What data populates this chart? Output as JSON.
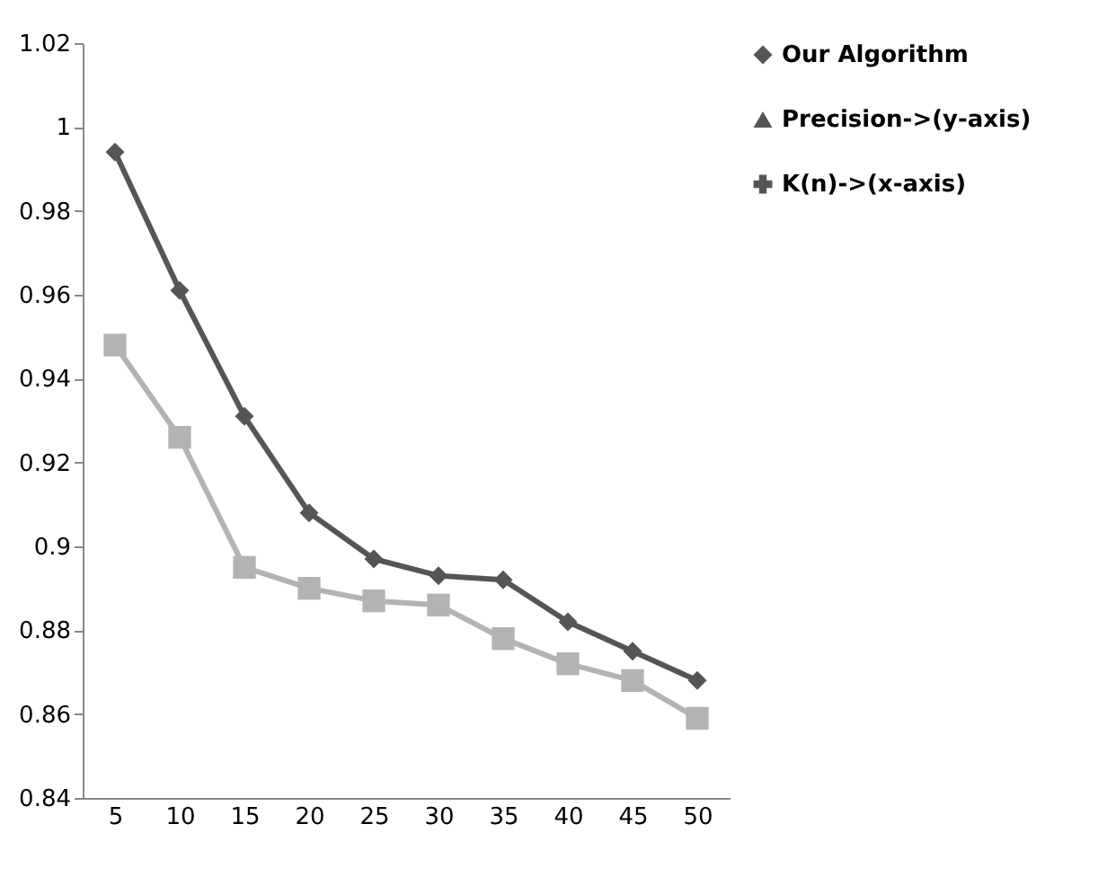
{
  "chart_data": {
    "type": "line",
    "categories": [
      "5",
      "10",
      "15",
      "20",
      "25",
      "30",
      "35",
      "40",
      "45",
      "50"
    ],
    "series": [
      {
        "name": "Our Algorithm",
        "color": "#555555",
        "marker": "diamond",
        "values": [
          0.994,
          0.961,
          0.931,
          0.908,
          0.897,
          0.893,
          0.892,
          0.882,
          0.875,
          0.868
        ]
      },
      {
        "color": "#b3b3b3",
        "marker": "square",
        "values": [
          0.948,
          0.926,
          0.895,
          0.89,
          0.887,
          0.886,
          0.878,
          0.872,
          0.868,
          0.859
        ]
      },
      {
        "name": "Precision->(y-axis)",
        "color": "#555555",
        "marker": "triangle",
        "values": [
          null,
          null,
          null,
          null,
          null,
          null,
          null,
          null,
          null,
          null
        ]
      },
      {
        "name": "K(n)->(x-axis)",
        "color": "#555555",
        "marker": "cross",
        "values": [
          null,
          null,
          null,
          null,
          null,
          null,
          null,
          null,
          null,
          null
        ]
      }
    ],
    "ylim": [
      0.84,
      1.02
    ],
    "yticks": [
      0.84,
      0.86,
      0.88,
      0.9,
      0.92,
      0.94,
      0.96,
      0.98,
      1,
      1.02
    ],
    "grid": false,
    "legend": "right"
  }
}
